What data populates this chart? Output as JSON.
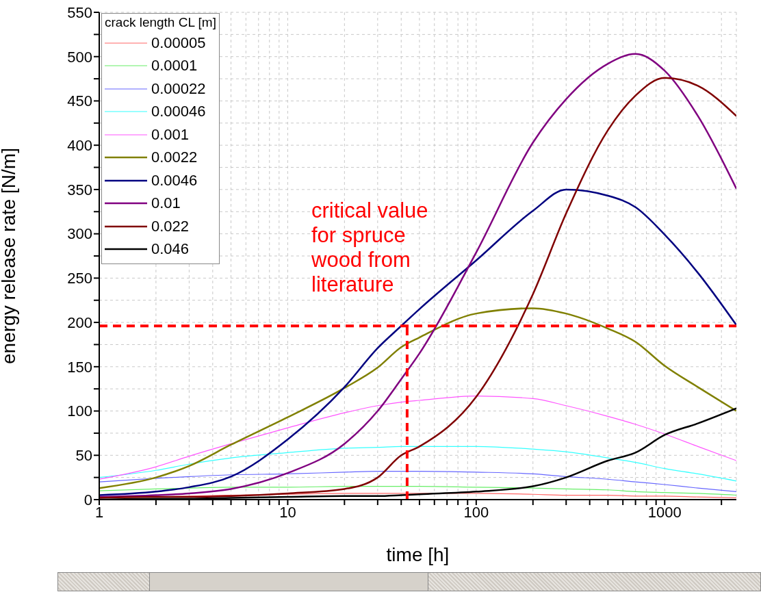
{
  "chart_data": {
    "type": "line",
    "xlabel": "time [h]",
    "ylabel": "energy release rate [N/m]",
    "legend_title": "crack length CL [m]",
    "legend": "top left",
    "grid": true,
    "log": "x",
    "line_style": "solid",
    "marker": "none",
    "x": [
      1,
      2,
      3,
      5,
      10,
      20,
      30,
      40,
      50,
      100,
      200,
      300,
      500,
      700,
      1000,
      1500,
      2400
    ],
    "xlim": [
      1,
      2400
    ],
    "xticks": [
      1,
      {
        "value": 2,
        "label": null
      },
      {
        "value": 3,
        "label": null
      },
      {
        "value": 4,
        "label": null
      },
      {
        "value": 5,
        "label": null
      },
      {
        "value": 6,
        "label": null
      },
      {
        "value": 7,
        "label": null
      },
      {
        "value": 8,
        "label": null
      },
      {
        "value": 9,
        "label": null
      },
      10,
      {
        "value": 20,
        "label": null
      },
      {
        "value": 30,
        "label": null
      },
      {
        "value": 40,
        "label": null
      },
      {
        "value": 50,
        "label": null
      },
      {
        "value": 60,
        "label": null
      },
      {
        "value": 70,
        "label": null
      },
      {
        "value": 80,
        "label": null
      },
      {
        "value": 90,
        "label": null
      },
      100,
      {
        "value": 200,
        "label": null
      },
      {
        "value": 300,
        "label": null
      },
      {
        "value": 400,
        "label": null
      },
      {
        "value": 500,
        "label": null
      },
      {
        "value": 600,
        "label": null
      },
      {
        "value": 700,
        "label": null
      },
      {
        "value": 800,
        "label": null
      },
      {
        "value": 900,
        "label": null
      },
      1000,
      {
        "value": 2000,
        "label": null
      }
    ],
    "ylim": [
      0,
      550
    ],
    "yticks": [
      0,
      {
        "value": 25,
        "label": null
      },
      50,
      {
        "value": 75,
        "label": null
      },
      100,
      {
        "value": 125,
        "label": null
      },
      150,
      {
        "value": 175,
        "label": null
      },
      200,
      {
        "value": 225,
        "label": null
      },
      250,
      {
        "value": 275,
        "label": null
      },
      300,
      {
        "value": 325,
        "label": null
      },
      350,
      {
        "value": 375,
        "label": null
      },
      400,
      {
        "value": 425,
        "label": null
      },
      450,
      {
        "value": 475,
        "label": null
      },
      500,
      {
        "value": 525,
        "label": null
      },
      550
    ],
    "series": [
      {
        "name": "0.00005",
        "color": "#ff6666",
        "values": [
          2,
          3,
          4,
          5,
          6,
          7,
          7,
          7,
          7,
          7,
          6,
          5,
          5,
          4,
          4,
          3,
          2
        ]
      },
      {
        "name": "0.0001",
        "color": "#66ee66",
        "values": [
          10,
          12,
          13,
          14,
          14,
          15,
          15,
          15,
          15,
          14,
          13,
          12,
          11,
          9,
          8,
          7,
          5
        ]
      },
      {
        "name": "0.00022",
        "color": "#6666ff",
        "values": [
          20,
          24,
          26,
          28,
          29,
          31,
          32,
          32,
          32,
          31,
          29,
          26,
          23,
          20,
          17,
          13,
          9
        ]
      },
      {
        "name": "0.00046",
        "color": "#33ffff",
        "values": [
          25,
          33,
          40,
          47,
          53,
          58,
          59,
          60,
          60,
          60,
          57,
          54,
          47,
          42,
          35,
          29,
          21
        ]
      },
      {
        "name": "0.001",
        "color": "#ff55ff",
        "values": [
          23,
          37,
          49,
          63,
          81,
          98,
          106,
          110,
          112,
          117,
          114,
          106,
          94,
          85,
          74,
          60,
          44
        ]
      },
      {
        "name": "0.0022",
        "color": "#808000",
        "values": [
          13,
          25,
          38,
          62,
          93,
          126,
          149,
          172,
          183,
          210,
          216,
          210,
          193,
          178,
          151,
          127,
          100
        ]
      },
      {
        "name": "0.0046",
        "color": "#000080",
        "values": [
          5,
          9,
          14,
          26,
          68,
          127,
          171,
          196,
          215,
          270,
          326,
          350,
          343,
          330,
          299,
          256,
          197
        ]
      },
      {
        "name": "0.01",
        "color": "#800080",
        "values": [
          3,
          5,
          7,
          12,
          30,
          63,
          100,
          136,
          165,
          279,
          403,
          452,
          492,
          503,
          484,
          433,
          351
        ]
      },
      {
        "name": "0.022",
        "color": "#800000",
        "values": [
          2,
          3,
          3,
          4,
          7,
          12,
          25,
          50,
          60,
          116,
          232,
          323,
          417,
          456,
          476,
          467,
          433
        ]
      },
      {
        "name": "0.046",
        "color": "#000000",
        "values": [
          0,
          1,
          1,
          2,
          3,
          4,
          4,
          5,
          6,
          9,
          15,
          25,
          44,
          53,
          73,
          86,
          103
        ]
      }
    ],
    "ref_lines": [
      {
        "axis": "y",
        "value": 196,
        "color": "#ff0000",
        "line_style": "dashed"
      },
      {
        "axis": "x",
        "value": 43,
        "color": "#ff0000",
        "line_style": "dashed"
      }
    ],
    "annotations": [
      "critical value for spruce wood from literature"
    ]
  }
}
